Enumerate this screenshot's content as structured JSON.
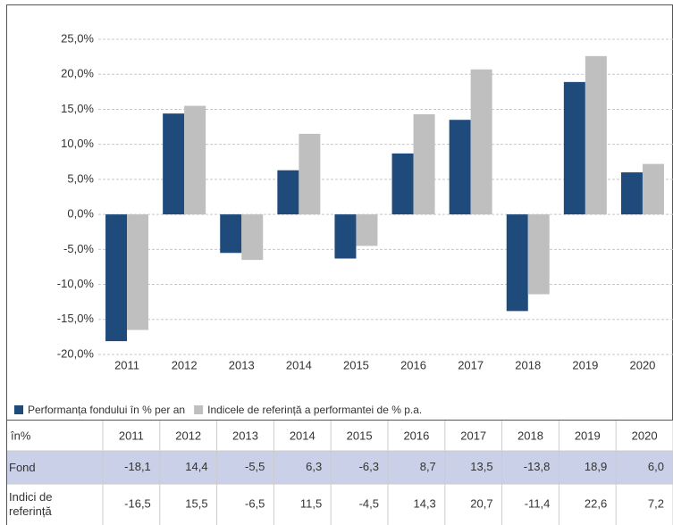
{
  "chart_data": {
    "type": "bar",
    "categories": [
      "2011",
      "2012",
      "2013",
      "2014",
      "2015",
      "2016",
      "2017",
      "2018",
      "2019",
      "2020"
    ],
    "series": [
      {
        "name": "Performanța fondului în % per an",
        "color": "#1f4a7c",
        "values": [
          -18.1,
          14.4,
          -5.5,
          6.3,
          -6.3,
          8.7,
          13.5,
          -13.8,
          18.9,
          6.0
        ],
        "value_labels": [
          "-18,1",
          "14,4",
          "-5,5",
          "6,3",
          "-6,3",
          "8,7",
          "13,5",
          "-13,8",
          "18,9",
          "6,0"
        ]
      },
      {
        "name": "Indicele de referință a performantei de % p.a.",
        "color": "#bfbfbf",
        "values": [
          -16.5,
          15.5,
          -6.5,
          11.5,
          -4.5,
          14.3,
          20.7,
          -11.4,
          22.6,
          7.2
        ],
        "value_labels": [
          "-16,5",
          "15,5",
          "-6,5",
          "11,5",
          "-4,5",
          "14,3",
          "20,7",
          "-11,4",
          "22,6",
          "7,2"
        ]
      }
    ],
    "ylim": [
      -20,
      25
    ],
    "yticks": [
      {
        "value": -20,
        "label": "-20,0%"
      },
      {
        "value": -15,
        "label": "-15,0%"
      },
      {
        "value": -10,
        "label": "-10,0%"
      },
      {
        "value": -5,
        "label": "-5,0%"
      },
      {
        "value": 0,
        "label": "0,0%"
      },
      {
        "value": 5,
        "label": "5,0%"
      },
      {
        "value": 10,
        "label": "10,0%"
      },
      {
        "value": 15,
        "label": "15,0%"
      },
      {
        "value": 20,
        "label": "20,0%"
      },
      {
        "value": 25,
        "label": "25,0%"
      }
    ],
    "grid": true,
    "table": {
      "header": "în%",
      "rows": [
        "Fond",
        "Indici de referință"
      ]
    }
  }
}
